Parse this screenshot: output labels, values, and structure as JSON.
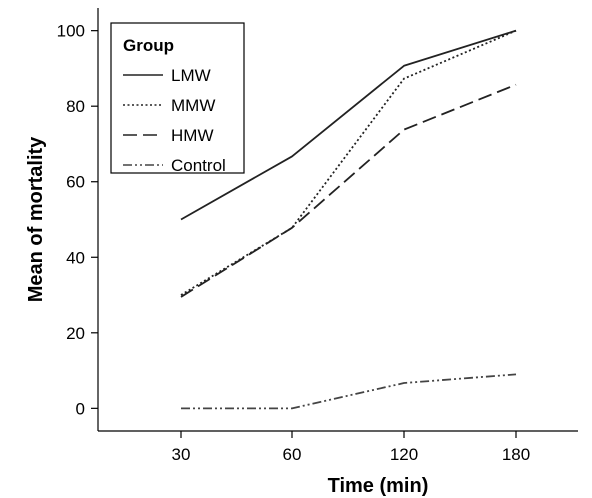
{
  "chart_data": {
    "type": "line",
    "title": "",
    "xlabel": "Time (min)",
    "ylabel": "Mean of mortality",
    "categories": [
      "30",
      "60",
      "120",
      "180"
    ],
    "ylim": [
      -6,
      106
    ],
    "yticks": [
      "0",
      "20",
      "40",
      "60",
      "80",
      "100"
    ],
    "grid": false,
    "legend": {
      "title": "Group",
      "placement": "top-left"
    },
    "series": [
      {
        "name": "LMW",
        "values": [
          50,
          66.7,
          90.7,
          100
        ],
        "color": "#222222",
        "dash": "solid"
      },
      {
        "name": "MMW",
        "values": [
          30,
          47.8,
          87.3,
          100
        ],
        "color": "#222222",
        "dash": "dotted"
      },
      {
        "name": "HMW",
        "values": [
          29.5,
          47.8,
          73.8,
          85.7
        ],
        "color": "#222222",
        "dash": "long-dash"
      },
      {
        "name": "Control",
        "values": [
          0,
          0,
          6.7,
          9
        ],
        "color": "#444444",
        "dash": "dash-dot-dot"
      }
    ]
  }
}
